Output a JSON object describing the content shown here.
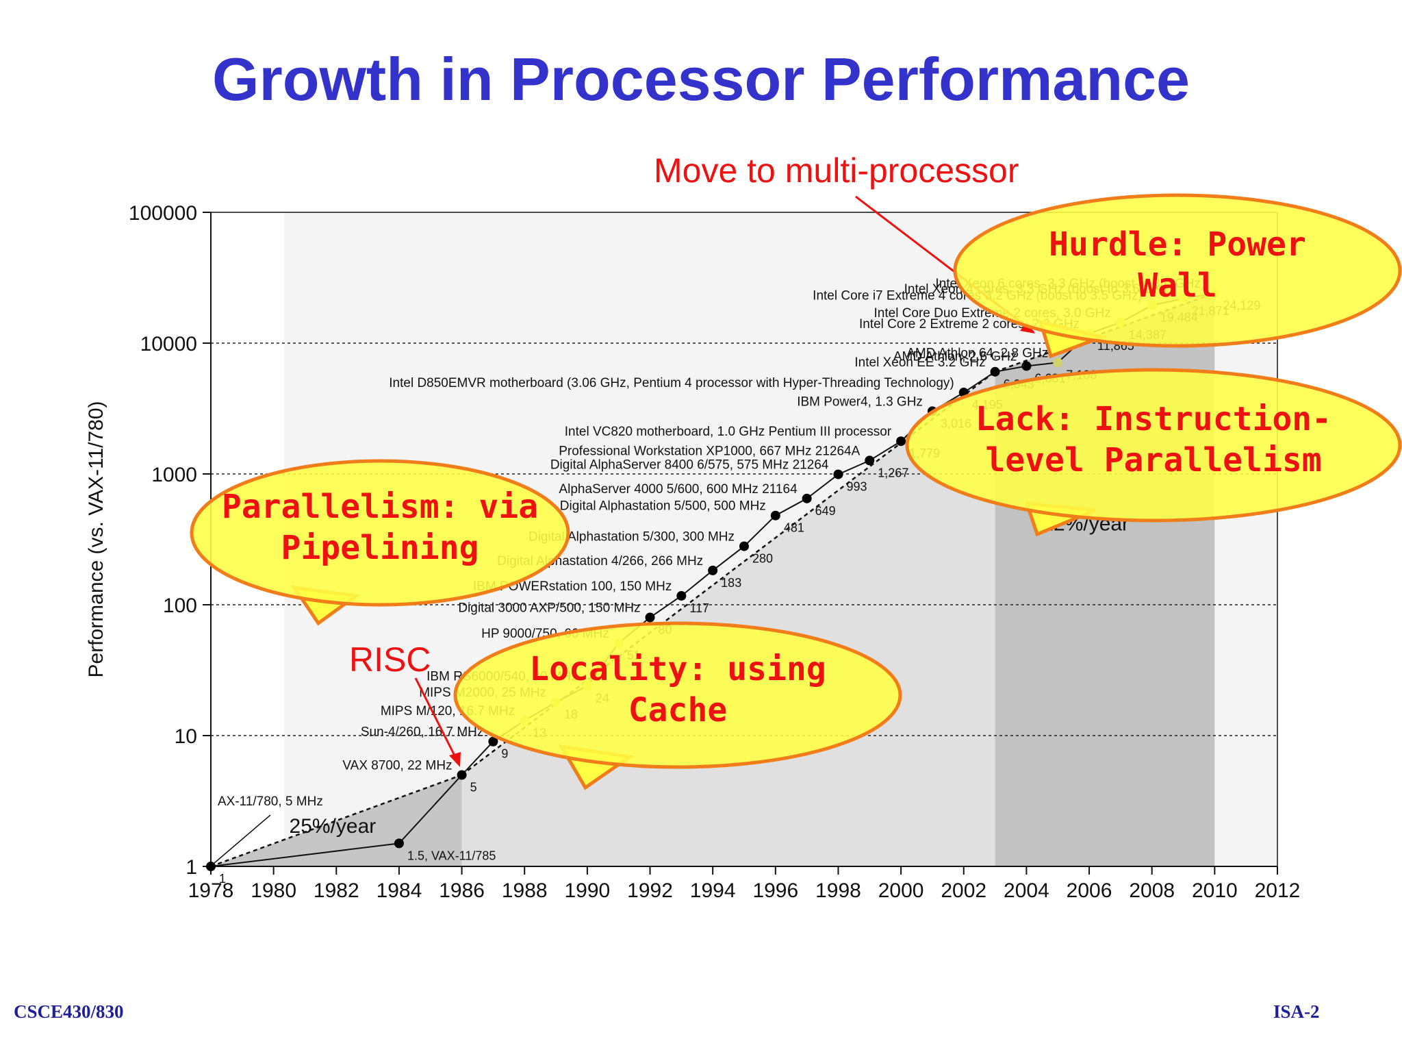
{
  "slide": {
    "title": "Growth in Processor Performance",
    "footer_left": "CSCE430/830",
    "footer_right": "ISA-2"
  },
  "annotations": {
    "multi": "Move to multi-processor",
    "risc": "RISC",
    "callouts": [
      {
        "lines": [
          "Hurdle: Power",
          "Wall"
        ]
      },
      {
        "lines": [
          "Lack: Instruction-",
          "level Parallelism"
        ]
      },
      {
        "lines": [
          "Parallelism: via",
          "Pipelining"
        ]
      },
      {
        "lines": [
          "Locality: using",
          "Cache"
        ]
      }
    ]
  },
  "colors": {
    "title": "#3333cc",
    "callout_fill": "#ffff44",
    "callout_border": "#f07d1a",
    "callout_text": "#ee1111"
  },
  "chart_data": {
    "type": "line",
    "title": "",
    "ylabel": "Performance (vs. VAX-11/780)",
    "xlabel": "",
    "ylog": true,
    "ylim": [
      1,
      100000
    ],
    "xlim": [
      1978,
      2012
    ],
    "x_ticks": [
      "1978",
      "1980",
      "1982",
      "1984",
      "1986",
      "1988",
      "1990",
      "1992",
      "1994",
      "1996",
      "1998",
      "2000",
      "2002",
      "2004",
      "2006",
      "2008",
      "2010",
      "2012"
    ],
    "y_ticks": [
      "1",
      "10",
      "100",
      "1000",
      "10000",
      "100000"
    ],
    "growth_rates": [
      {
        "label": "25%/year",
        "x": 1980.5,
        "y": 1.8
      },
      {
        "label": "22%/year",
        "x": 2004.5,
        "y": 370
      }
    ],
    "regions": [
      {
        "x0": 1978,
        "x1": 1986
      },
      {
        "x0": 1986,
        "x1": 2003
      },
      {
        "x0": 2003,
        "x1": 2010
      }
    ],
    "series": [
      {
        "points": [
          {
            "x": 1978,
            "y": 1,
            "value": "1",
            "label": "AX-11/780, 5 MHz"
          },
          {
            "x": 1984,
            "y": 1.5,
            "value": "1.5, VAX-11/785",
            "label": ""
          },
          {
            "x": 1986,
            "y": 5,
            "value": "5",
            "label": "VAX 8700, 22 MHz"
          },
          {
            "x": 1987,
            "y": 9,
            "value": "9",
            "label": "Sun-4/260, 16.7 MHz"
          },
          {
            "x": 1988,
            "y": 13,
            "value": "13",
            "label": "MIPS M/120, 16.7 MHz"
          },
          {
            "x": 1989,
            "y": 18,
            "value": "18",
            "label": "MIPS M2000, 25 MHz"
          },
          {
            "x": 1990,
            "y": 24,
            "value": "24",
            "label": "IBM RS6000/540, 30 MHz"
          },
          {
            "x": 1991,
            "y": 51,
            "value": "51",
            "label": "HP 9000/750, 66 MHz"
          },
          {
            "x": 1992,
            "y": 80,
            "value": "80",
            "label": "Digital 3000 AXP/500, 150 MHz"
          },
          {
            "x": 1993,
            "y": 117,
            "value": "117",
            "label": "IBM POWERstation 100, 150 MHz"
          },
          {
            "x": 1994,
            "y": 183,
            "value": "183",
            "label": "Digital Alphastation 4/266, 266 MHz"
          },
          {
            "x": 1995,
            "y": 280,
            "value": "280",
            "label": "Digital Alphastation 5/300, 300 MHz"
          },
          {
            "x": 1996,
            "y": 481,
            "value": "481",
            "label": "Digital Alphastation 5/500, 500 MHz"
          },
          {
            "x": 1997,
            "y": 649,
            "value": "649",
            "label": "AlphaServer 4000 5/600, 600 MHz 21164"
          },
          {
            "x": 1998,
            "y": 993,
            "value": "993",
            "label": "Digital AlphaServer 8400 6/575, 575 MHz 21264"
          },
          {
            "x": 1999,
            "y": 1267,
            "value": "1,267",
            "label": "Professional Workstation XP1000, 667 MHz 21264A"
          },
          {
            "x": 2000,
            "y": 1779,
            "value": "1,779",
            "label": "Intel VC820 motherboard, 1.0 GHz Pentium III processor"
          },
          {
            "x": 2001,
            "y": 3016,
            "value": "3,016",
            "label": "IBM Power4, 1.3 GHz"
          },
          {
            "x": 2002,
            "y": 4195,
            "value": "4,195",
            "label": "Intel D850EMVR motherboard (3.06 GHz, Pentium 4 processor with Hyper-Threading Technology)"
          },
          {
            "x": 2003,
            "y": 6043,
            "value": "6,043",
            "label": "Intel Xeon EE 3.2 GHz"
          },
          {
            "x": 2004,
            "y": 6681,
            "value": "6,681",
            "label": "AMD Athlon, 2.6 GHz"
          },
          {
            "x": 2005,
            "y": 7108,
            "value": "7,108",
            "label": "AMD Athlon 64, 2.8 GHz"
          },
          {
            "x": 2006,
            "y": 11865,
            "value": "11,865",
            "label": "Intel Core 2 Extreme 2 cores, 2.9 GHz"
          },
          {
            "x": 2007,
            "y": 14387,
            "value": "14,387",
            "label": "Intel Core Duo Extreme 2 cores, 3.0 GHz"
          },
          {
            "x": 2008,
            "y": 19484,
            "value": "19,484",
            "label": "Intel Core i7 Extreme 4 cores 3.2 GHz (boost to 3.5 GHz)"
          },
          {
            "x": 2009,
            "y": 21871,
            "value": "21,871",
            "label": "Intel Xeon 4 cores, 3.3 GHz (boost to 3.6 GHz)"
          },
          {
            "x": 2010,
            "y": 24129,
            "value": "24,129",
            "label": "Intel Xeon 6 cores, 3.3 GHz (boost to 3.6 GHz)"
          }
        ]
      }
    ]
  }
}
